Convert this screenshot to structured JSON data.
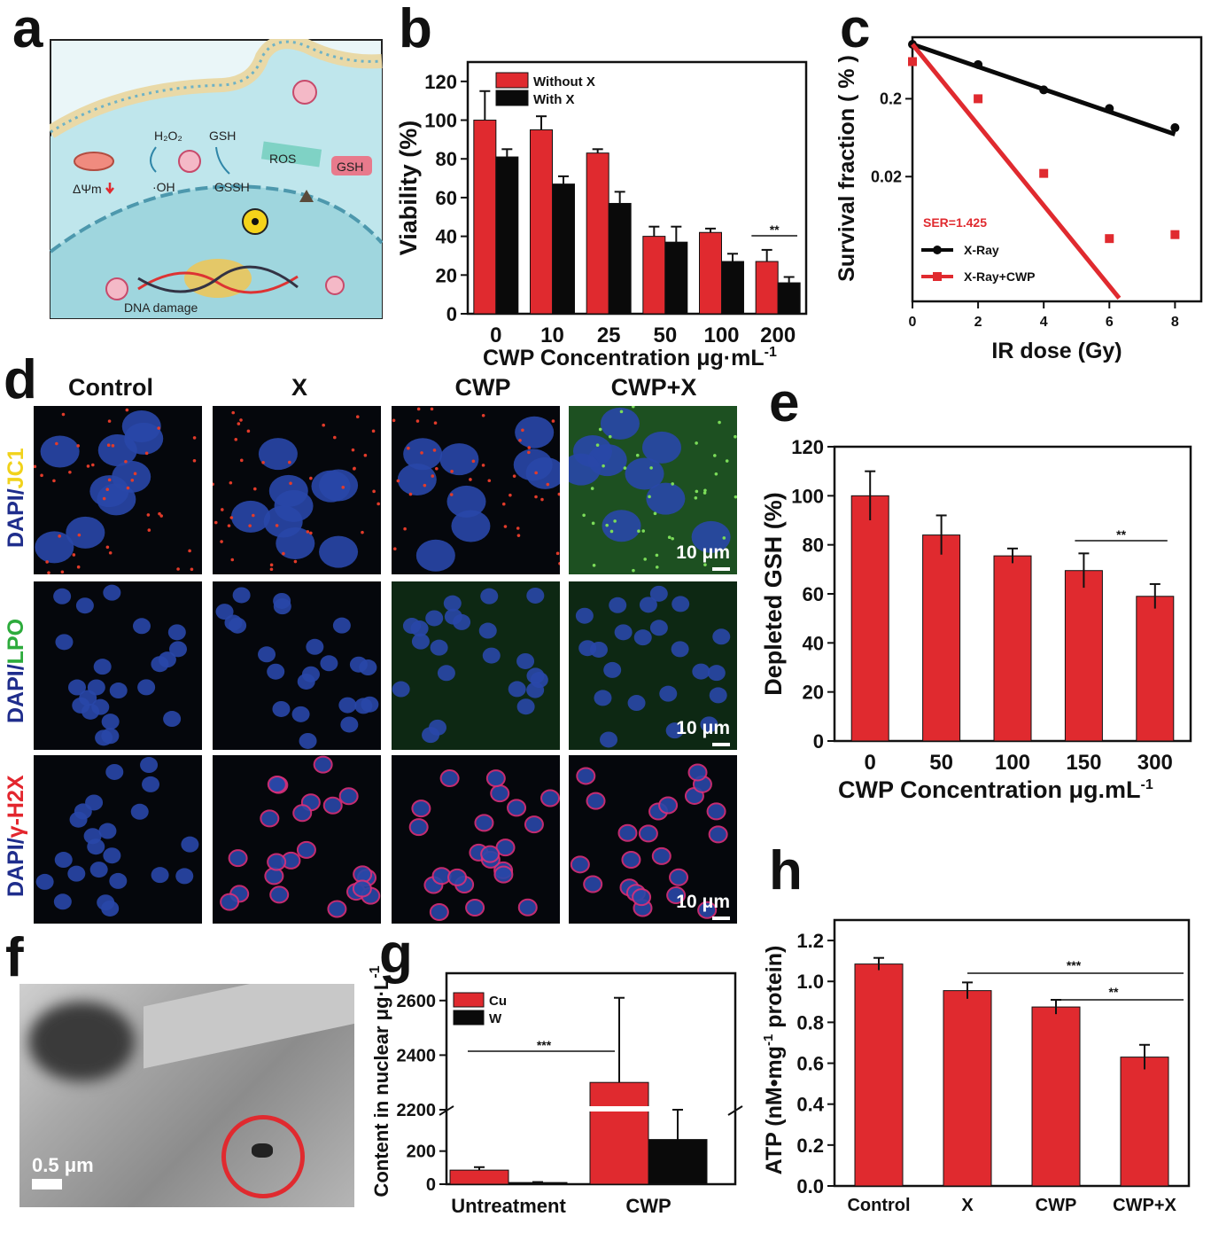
{
  "panel_letters": {
    "a": "a",
    "b": "b",
    "c": "c",
    "d": "d",
    "e": "e",
    "f": "f",
    "g": "g",
    "h": "h"
  },
  "schematic": {
    "h2o2": "H₂O₂",
    "gsh": "GSH",
    "oh": "·OH",
    "gssh": "GSSH",
    "ros": "ROS",
    "gsh_tag": "GSH",
    "dpsi": "ΔΨm",
    "dna": "DNA damage"
  },
  "colors": {
    "red": "#e02a2f",
    "black": "#0a0a0a",
    "cell": "#bfe6ec",
    "nucleus": "#9fd6de"
  },
  "microscopy": {
    "columns": [
      "Control",
      "X",
      "CWP",
      "CWP+X"
    ],
    "rows": [
      {
        "prefix": "DAPI/",
        "stain": "JC1",
        "stain_color": "#f1d21b"
      },
      {
        "prefix": "DAPI/",
        "stain": "LPO",
        "stain_color": "#2dab3c"
      },
      {
        "prefix": "DAPI/",
        "stain": "γ-H2X",
        "stain_color": "#e3262e"
      }
    ],
    "scale": "10 μm"
  },
  "tem": {
    "scale": "0.5 μm"
  },
  "chart_data": [
    {
      "panel": "b",
      "type": "bar",
      "categories": [
        "0",
        "10",
        "25",
        "50",
        "100",
        "200"
      ],
      "series": [
        {
          "name": "Without X",
          "color": "#e02a2f",
          "values": [
            100,
            95,
            83,
            40,
            42,
            27
          ],
          "errors": [
            15,
            7,
            2,
            5,
            2,
            6
          ]
        },
        {
          "name": "With X",
          "color": "#0a0a0a",
          "values": [
            81,
            67,
            57,
            37,
            27,
            16
          ],
          "errors": [
            4,
            4,
            6,
            8,
            4,
            3
          ]
        }
      ],
      "ylabel": "Viability (%)",
      "xlabel": "CWP Concentration  μg·mL",
      "xlabel_sup": "-1",
      "ylim": [
        0,
        130
      ],
      "yticks": [
        "0",
        "20",
        "40",
        "60",
        "80",
        "100",
        "120"
      ],
      "significance": "**",
      "legend": "top-left"
    },
    {
      "panel": "c",
      "type": "line",
      "xlabel": "IR dose (Gy)",
      "ylabel": "Survival fraction ( % )",
      "xticks": [
        "0",
        "2",
        "4",
        "6",
        "8"
      ],
      "yticks": [
        "0.2",
        "0.02"
      ],
      "annotation": "SER=1.425",
      "series": [
        {
          "name": "X-Ray",
          "color": "#0a0a0a",
          "x": [
            0,
            2,
            4,
            6,
            8
          ],
          "y": [
            1.0,
            0.55,
            0.26,
            0.15,
            0.085
          ],
          "fit": [
            [
              0,
              1.0
            ],
            [
              8,
              0.07
            ]
          ]
        },
        {
          "name": "X-Ray+CWP",
          "color": "#e02a2f",
          "x": [
            0,
            2,
            4,
            6,
            8
          ],
          "y": [
            0.6,
            0.2,
            0.022,
            0.0032,
            0.0036
          ],
          "fit": [
            [
              0,
              1.0
            ],
            [
              6.3,
              0.00055
            ]
          ]
        }
      ],
      "legend": "bottom-left"
    },
    {
      "panel": "e",
      "type": "bar",
      "categories": [
        "0",
        "50",
        "100",
        "150",
        "300"
      ],
      "values": [
        100,
        84,
        75.5,
        69.5,
        59
      ],
      "errors": [
        10,
        8,
        3,
        7,
        5
      ],
      "ylabel": "Depleted GSH  (%)",
      "xlabel": "CWP Concentration μg.mL",
      "xlabel_sup": "-1",
      "ylim": [
        0,
        120
      ],
      "yticks": [
        "0",
        "20",
        "40",
        "60",
        "80",
        "100",
        "120"
      ],
      "significance": "**"
    },
    {
      "panel": "g",
      "type": "bar",
      "categories": [
        "Untreatment",
        "CWP"
      ],
      "series": [
        {
          "name": "Cu",
          "color": "#e02a2f",
          "values": [
            85,
            2300
          ],
          "errors": [
            18,
            310
          ]
        },
        {
          "name": "W",
          "color": "#0a0a0a",
          "values": [
            10,
            270
          ],
          "errors": [
            3,
            50
          ]
        }
      ],
      "ylabel": "Content in nuclear  μg·L",
      "ylabel_sup": "-1",
      "yticks_lower": [
        "0",
        "200"
      ],
      "yticks_upper": [
        "2200",
        "2400",
        "2600"
      ],
      "significance": "***",
      "legend": "top-left"
    },
    {
      "panel": "h",
      "type": "bar",
      "categories": [
        "Control",
        "X",
        "CWP",
        "CWP+X"
      ],
      "values": [
        1.085,
        0.955,
        0.875,
        0.63
      ],
      "errors": [
        0.03,
        0.04,
        0.035,
        0.06
      ],
      "ylabel": "ATP (nM•mg",
      "ylabel_sup": "-1",
      "ylabel_tail": " protein)",
      "ylim": [
        0,
        1.3
      ],
      "yticks": [
        "0.0",
        "0.2",
        "0.4",
        "0.6",
        "0.8",
        "1.0",
        "1.2"
      ],
      "significance": [
        "***",
        "**"
      ]
    }
  ]
}
